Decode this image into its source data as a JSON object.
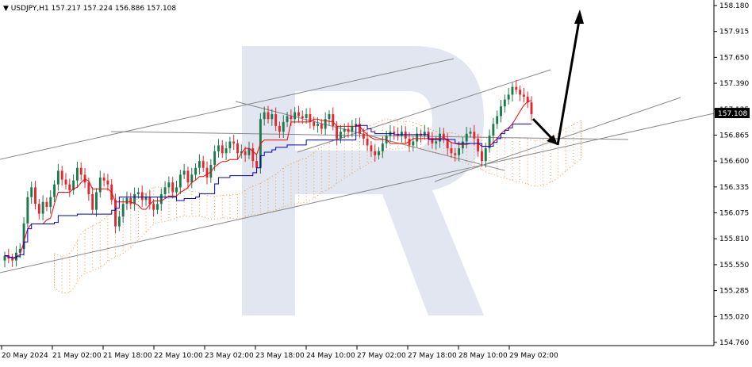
{
  "header": {
    "symbol": "USDJPY,H1",
    "open": "157.217",
    "high": "157.224",
    "low": "156.886",
    "close": "157.108"
  },
  "colors": {
    "bull": "#1a7a4c",
    "bear": "#e0282e",
    "tenkan": "#ff0000",
    "kijun": "#0000cc",
    "cloud": "#ee9c4a",
    "channel": "#888888",
    "arrow": "#000000",
    "watermark": "#c9d1e5",
    "price_tag_bg": "#000000",
    "price_tag_text": "#ffffff"
  },
  "chart_data": {
    "type": "candlestick",
    "title": "",
    "ylim": [
      154.76,
      158.23
    ],
    "y_ticks": [
      "158.180",
      "157.915",
      "157.650",
      "157.390",
      "157.125",
      "156.865",
      "156.600",
      "156.335",
      "156.075",
      "155.810",
      "155.550",
      "155.285",
      "155.020",
      "154.760"
    ],
    "x_ticks": [
      "20 May 2024",
      "21 May 02:00",
      "21 May 18:00",
      "22 May 10:00",
      "23 May 02:00",
      "23 May 18:00",
      "24 May 10:00",
      "27 May 02:00",
      "27 May 18:00",
      "28 May 10:00",
      "29 May 02:00"
    ],
    "current_price": "157.108",
    "closes": [
      155.65,
      155.62,
      155.6,
      155.68,
      155.72,
      155.98,
      156.25,
      156.35,
      156.18,
      156.08,
      156.2,
      156.15,
      156.25,
      156.38,
      156.52,
      156.43,
      156.38,
      156.32,
      156.42,
      156.55,
      156.48,
      156.4,
      156.28,
      156.12,
      156.3,
      156.45,
      156.42,
      156.38,
      156.22,
      155.95,
      156.05,
      156.18,
      156.24,
      156.18,
      156.28,
      156.3,
      156.22,
      156.25,
      156.18,
      156.12,
      156.18,
      156.28,
      156.35,
      156.4,
      156.3,
      156.35,
      156.48,
      156.52,
      156.4,
      156.48,
      156.55,
      156.62,
      156.55,
      156.45,
      156.58,
      156.72,
      156.78,
      156.7,
      156.75,
      156.82,
      156.8,
      156.7,
      156.72,
      156.68,
      156.75,
      156.62,
      156.55,
      157.05,
      157.12,
      157.05,
      157.1,
      156.98,
      156.92,
      157.02,
      157.08,
      157.05,
      157.12,
      157.08,
      157.06,
      157.1,
      157.02,
      156.98,
      157.0,
      156.95,
      157.05,
      157.1,
      156.98,
      156.85,
      156.92,
      156.95,
      156.92,
      156.98,
      157.0,
      156.9,
      156.85,
      156.78,
      156.72,
      156.68,
      156.72,
      156.8,
      156.88,
      156.92,
      156.9,
      156.88,
      156.92,
      156.85,
      156.78,
      156.82,
      156.9,
      156.88,
      156.92,
      156.85,
      156.8,
      156.82,
      156.9,
      156.85,
      156.75,
      156.7,
      156.68,
      156.75,
      156.82,
      156.9,
      156.92,
      156.85,
      156.72,
      156.62,
      156.75,
      156.88,
      157.0,
      157.08,
      157.18,
      157.25,
      157.3,
      157.38,
      157.35,
      157.3,
      157.28,
      157.22,
      157.1
    ],
    "trendlines": [
      {
        "name": "lower-support",
        "points": [
          [
            "20 May 2024",
            155.5
          ],
          [
            "29 May",
            157.0
          ]
        ]
      },
      {
        "name": "upper-channel",
        "points": [
          [
            "20 May 2024",
            156.85
          ],
          [
            "27 May",
            157.65
          ]
        ]
      }
    ],
    "annotations": [
      "forecast-arrow-down",
      "forecast-arrow-up"
    ]
  }
}
